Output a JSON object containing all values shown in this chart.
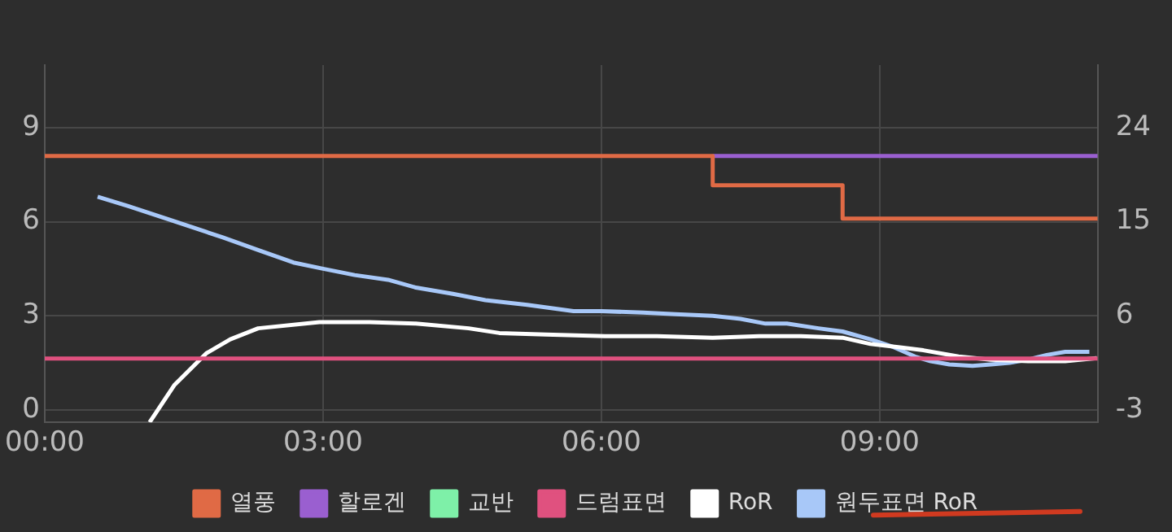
{
  "chart_data": {
    "type": "line",
    "xlim": [
      0,
      11.35
    ],
    "xticks": [
      {
        "value": 0,
        "label": "00:00"
      },
      {
        "value": 3,
        "label": "03:00"
      },
      {
        "value": 6,
        "label": "06:00"
      },
      {
        "value": 9,
        "label": "09:00"
      }
    ],
    "ylim": [
      -0.4,
      11
    ],
    "yticks": [
      0,
      3,
      6,
      9
    ],
    "y2lim": [
      -4.2,
      30
    ],
    "y2ticks": [
      -3,
      6,
      15,
      24
    ],
    "grid": true,
    "legend": "bottom",
    "marker": "none",
    "line_style": "solid",
    "series": [
      {
        "name": "열풍",
        "type": "step",
        "axis": "y2",
        "color": "#e06a45",
        "x": [
          0,
          7.2,
          8.6,
          11.35
        ],
        "values": [
          21.3,
          18.5,
          15.3,
          15.3
        ]
      },
      {
        "name": "할로겐",
        "type": "step",
        "axis": "y2",
        "color": "#9a5fd0",
        "x": [
          7.2,
          11.35
        ],
        "values": [
          21.3,
          21.3
        ]
      },
      {
        "name": "교반",
        "type": "step",
        "axis": "y2",
        "color": "#7ef0a8"
      },
      {
        "name": "드럼표면",
        "type": "step",
        "axis": "y2",
        "color": "#e0517f",
        "x": [
          0,
          11.35
        ],
        "values": [
          1.9,
          1.9
        ]
      },
      {
        "name": "RoR",
        "type": "line",
        "axis": "y",
        "color": "#ffffff",
        "x": [
          1.13,
          1.4,
          1.74,
          2.0,
          2.3,
          2.96,
          3.5,
          4.0,
          4.57,
          4.9,
          5.4,
          6.04,
          6.6,
          7.2,
          7.7,
          8.15,
          8.6,
          8.9,
          9.2,
          9.47,
          9.85,
          10.2,
          10.6,
          11.0,
          11.34
        ],
        "values": [
          -0.4,
          0.8,
          1.8,
          2.25,
          2.6,
          2.8,
          2.8,
          2.75,
          2.6,
          2.45,
          2.4,
          2.35,
          2.35,
          2.3,
          2.35,
          2.35,
          2.3,
          2.1,
          2.0,
          1.9,
          1.7,
          1.6,
          1.55,
          1.55,
          1.65
        ]
      },
      {
        "name": "원두표면 RoR",
        "type": "line",
        "axis": "y",
        "color": "#a8c8f8",
        "x": [
          0.57,
          0.9,
          1.36,
          1.92,
          2.3,
          2.68,
          3.0,
          3.34,
          3.7,
          4.0,
          4.4,
          4.75,
          5.2,
          5.7,
          6.0,
          6.45,
          6.8,
          7.2,
          7.5,
          7.77,
          8.0,
          8.34,
          8.6,
          8.9,
          9.15,
          9.38,
          9.55,
          9.75,
          10.0,
          10.2,
          10.4,
          10.6,
          10.8,
          11.0,
          11.26
        ],
        "values": [
          6.8,
          6.5,
          6.05,
          5.5,
          5.1,
          4.7,
          4.5,
          4.3,
          4.15,
          3.9,
          3.7,
          3.5,
          3.35,
          3.15,
          3.15,
          3.1,
          3.05,
          3.0,
          2.9,
          2.75,
          2.75,
          2.6,
          2.5,
          2.25,
          2.0,
          1.7,
          1.55,
          1.45,
          1.4,
          1.45,
          1.5,
          1.6,
          1.75,
          1.85,
          1.85
        ]
      }
    ]
  }
}
